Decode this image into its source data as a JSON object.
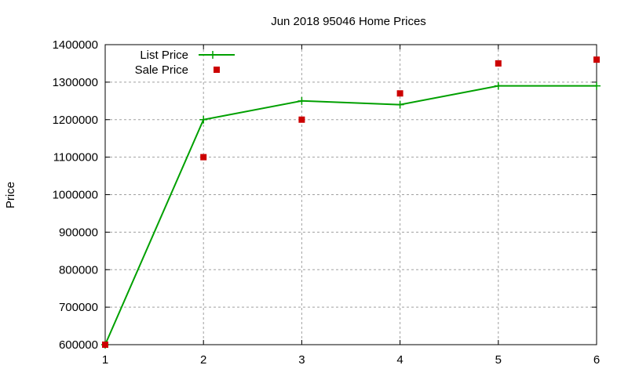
{
  "chart_data": {
    "type": "line",
    "title": "Jun 2018 95046 Home Prices",
    "xlabel": "",
    "ylabel": "Price",
    "x": [
      1,
      2,
      3,
      4,
      5,
      6
    ],
    "xlim": [
      1,
      6
    ],
    "ylim": [
      600000,
      1400000
    ],
    "yticks": [
      600000,
      700000,
      800000,
      900000,
      1000000,
      1100000,
      1200000,
      1300000,
      1400000
    ],
    "xticks": [
      1,
      2,
      3,
      4,
      5,
      6
    ],
    "grid": true,
    "legend_position": "top-left",
    "series": [
      {
        "name": "List Price",
        "style": "line+cross",
        "color": "#00a000",
        "values": [
          600000,
          1200000,
          1250000,
          1240000,
          1290000,
          1290000
        ]
      },
      {
        "name": "Sale Price",
        "style": "square-points",
        "color": "#cc0000",
        "values": [
          600000,
          1100000,
          1200000,
          1270000,
          1350000,
          1360000
        ]
      }
    ]
  }
}
